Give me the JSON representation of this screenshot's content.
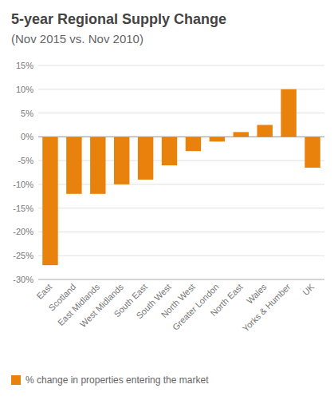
{
  "chart_data": {
    "type": "bar",
    "title": "5-year Regional Supply Change",
    "subtitle": "(Nov 2015 vs. Nov 2010)",
    "categories": [
      "East",
      "Scotland",
      "East Midlands",
      "West Midlands",
      "South East",
      "South West",
      "North West",
      "Greater London",
      "North East",
      "Wales",
      "Yorks & Humber",
      "UK"
    ],
    "series": [
      {
        "name": "% change in properties entering the market",
        "color": "#E8820C",
        "values": [
          -27,
          -12,
          -12,
          -10,
          -9,
          -6,
          -3,
          -1,
          1,
          2.5,
          10,
          -6.5
        ]
      }
    ],
    "ylim": [
      -30,
      15
    ],
    "yticks": [
      {
        "value": -30,
        "label": "-30%"
      },
      {
        "value": -25,
        "label": "-25%"
      },
      {
        "value": -20,
        "label": "-20%"
      },
      {
        "value": -15,
        "label": "-15%"
      },
      {
        "value": -10,
        "label": "-10%"
      },
      {
        "value": -5,
        "label": "-5%"
      },
      {
        "value": 0,
        "label": "0%"
      },
      {
        "value": 5,
        "label": "5%"
      },
      {
        "value": 10,
        "label": "10%"
      },
      {
        "value": 15,
        "label": "15%"
      }
    ],
    "grid": true,
    "legend": "bottom"
  }
}
